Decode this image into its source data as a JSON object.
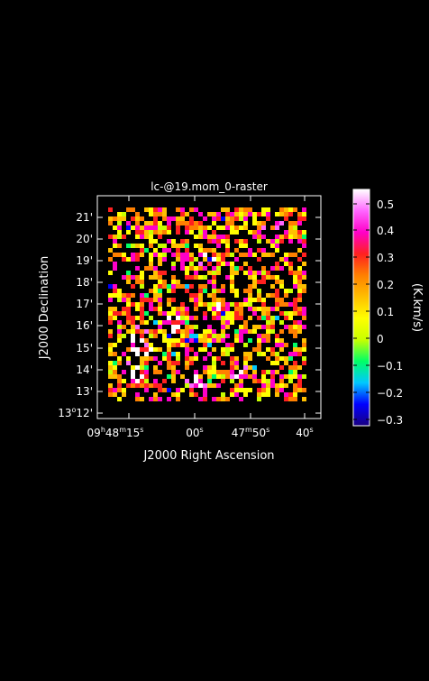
{
  "figure": {
    "title": "lc-@19.mom_0-raster",
    "x_axis_label": "J2000 Right Ascension",
    "y_axis_label": "J2000 Declination",
    "x_ticks": [
      {
        "h": "09",
        "m": "48",
        "s": "15",
        "label": "09h48m15s"
      },
      {
        "s": "00",
        "label": "00s"
      },
      {
        "m": "47",
        "s": "50",
        "label": "47m50s"
      },
      {
        "s": "40",
        "label": "40s"
      }
    ],
    "y_ticks": [
      "21'",
      "20'",
      "19'",
      "18'",
      "17'",
      "16'",
      "15'",
      "14'",
      "13'",
      "13°12'"
    ],
    "y_tick_bottom": {
      "deg": "13",
      "min": "12'"
    },
    "colorbar": {
      "label": "(K.km/s)",
      "ticks": [
        "0.5",
        "0.4",
        "0.3",
        "0.2",
        "0.1",
        "0",
        "−0.1",
        "−0.2",
        "−0.3"
      ],
      "range": [
        -0.32,
        0.55
      ]
    }
  },
  "colors": {
    "background": "#000000",
    "frame": "#ffffff",
    "colormap": [
      "#1a0080",
      "#0000ff",
      "#00c8ff",
      "#00ff66",
      "#c8ff00",
      "#ffff00",
      "#ffbf00",
      "#ff8000",
      "#ff2020",
      "#ff00c8",
      "#ff66ff",
      "#ffffff"
    ]
  }
}
